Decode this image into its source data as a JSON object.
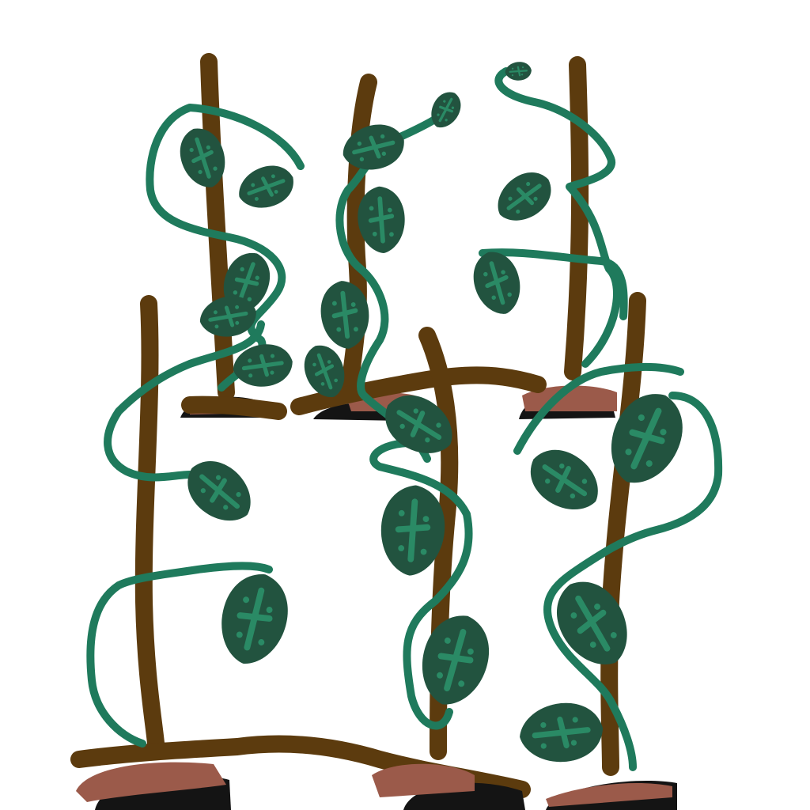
{
  "scene": {
    "description_name": "vine-trellis-drawing",
    "colors": {
      "background": "#ffffff",
      "stake": "#5c3b0e",
      "vine": "#1f7a5c",
      "leaf": "#22533f",
      "leaf_vein": "#2a8a65",
      "soil_top": "#9b5a4a",
      "soil_dark": "#141414",
      "soil_edge": "#5c3b0e"
    },
    "counts": {
      "stakes": 6,
      "soil_mounds": 6
    }
  }
}
